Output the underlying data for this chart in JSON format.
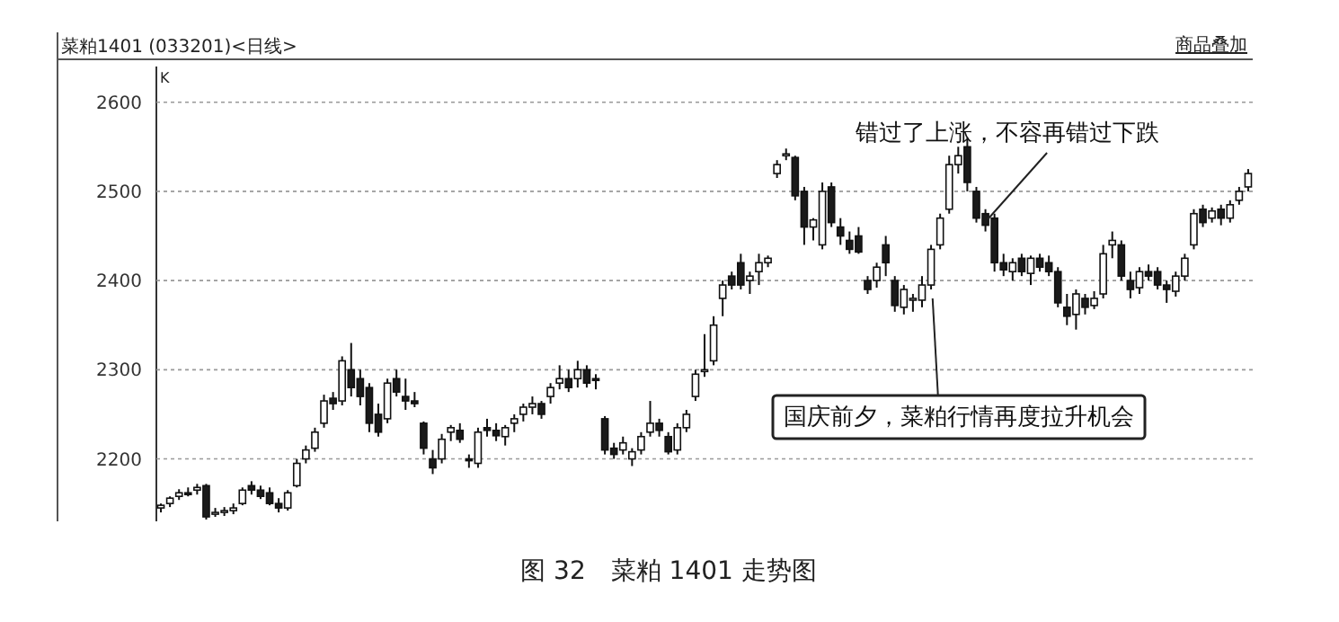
{
  "chart_data": {
    "type": "candlestick",
    "title": "菜粕1401 (033201)<日线>",
    "categories": [
      null,
      null,
      null,
      null,
      null,
      null,
      null,
      null,
      null,
      null,
      null,
      null,
      null,
      null,
      null,
      null,
      null,
      null,
      null,
      null,
      null,
      null,
      null,
      null,
      null,
      null,
      null,
      null,
      null,
      null,
      null,
      null,
      null,
      null,
      null,
      null,
      null,
      null,
      null,
      null,
      null,
      null,
      null,
      null,
      null,
      null,
      null,
      null,
      null,
      null,
      null,
      null,
      null,
      null,
      null,
      null,
      null,
      null,
      null,
      null,
      null,
      null,
      null,
      null,
      null,
      null,
      null,
      null,
      null,
      null,
      null,
      null,
      null,
      null,
      null,
      null,
      null,
      null,
      null,
      null,
      null,
      null,
      null,
      null,
      null,
      null,
      null,
      null,
      null,
      null,
      null,
      null,
      null,
      null,
      null,
      null,
      null,
      null,
      null,
      null,
      null,
      null,
      null,
      null,
      null,
      null,
      null,
      null,
      null,
      null,
      null,
      null,
      null,
      null,
      null,
      null,
      null,
      null,
      null,
      null,
      null
    ],
    "ohlc": [
      [
        2145,
        2150,
        2140,
        2148
      ],
      [
        2150,
        2158,
        2146,
        2156
      ],
      [
        2158,
        2166,
        2154,
        2162
      ],
      [
        2162,
        2168,
        2158,
        2160
      ],
      [
        2165,
        2172,
        2160,
        2168
      ],
      [
        2170,
        2172,
        2132,
        2135
      ],
      [
        2138,
        2145,
        2135,
        2140
      ],
      [
        2140,
        2146,
        2136,
        2142
      ],
      [
        2142,
        2150,
        2138,
        2145
      ],
      [
        2150,
        2168,
        2148,
        2165
      ],
      [
        2170,
        2175,
        2160,
        2165
      ],
      [
        2165,
        2170,
        2155,
        2158
      ],
      [
        2162,
        2168,
        2148,
        2150
      ],
      [
        2150,
        2156,
        2140,
        2145
      ],
      [
        2145,
        2165,
        2142,
        2162
      ],
      [
        2170,
        2200,
        2168,
        2195
      ],
      [
        2200,
        2215,
        2195,
        2210
      ],
      [
        2212,
        2235,
        2208,
        2230
      ],
      [
        2240,
        2272,
        2235,
        2265
      ],
      [
        2268,
        2275,
        2255,
        2262
      ],
      [
        2265,
        2315,
        2260,
        2310
      ],
      [
        2300,
        2330,
        2270,
        2280
      ],
      [
        2290,
        2300,
        2260,
        2270
      ],
      [
        2280,
        2285,
        2230,
        2240
      ],
      [
        2250,
        2262,
        2225,
        2230
      ],
      [
        2245,
        2290,
        2240,
        2285
      ],
      [
        2290,
        2300,
        2270,
        2275
      ],
      [
        2270,
        2290,
        2255,
        2265
      ],
      [
        2265,
        2275,
        2258,
        2262
      ],
      [
        2240,
        2242,
        2205,
        2212
      ],
      [
        2200,
        2210,
        2183,
        2190
      ],
      [
        2200,
        2228,
        2195,
        2222
      ],
      [
        2230,
        2238,
        2220,
        2235
      ],
      [
        2232,
        2240,
        2218,
        2222
      ],
      [
        2200,
        2205,
        2190,
        2198
      ],
      [
        2195,
        2235,
        2190,
        2230
      ],
      [
        2235,
        2245,
        2225,
        2232
      ],
      [
        2232,
        2240,
        2220,
        2226
      ],
      [
        2225,
        2238,
        2215,
        2235
      ],
      [
        2240,
        2250,
        2230,
        2245
      ],
      [
        2250,
        2262,
        2242,
        2258
      ],
      [
        2258,
        2270,
        2250,
        2262
      ],
      [
        2262,
        2265,
        2245,
        2250
      ],
      [
        2270,
        2285,
        2262,
        2280
      ],
      [
        2285,
        2305,
        2278,
        2290
      ],
      [
        2290,
        2300,
        2275,
        2280
      ],
      [
        2290,
        2310,
        2280,
        2300
      ],
      [
        2300,
        2305,
        2280,
        2285
      ],
      [
        2290,
        2295,
        2278,
        2288
      ],
      [
        2245,
        2248,
        2205,
        2210
      ],
      [
        2212,
        2218,
        2200,
        2205
      ],
      [
        2210,
        2225,
        2205,
        2218
      ],
      [
        2200,
        2212,
        2192,
        2208
      ],
      [
        2210,
        2230,
        2205,
        2225
      ],
      [
        2230,
        2265,
        2225,
        2240
      ],
      [
        2240,
        2245,
        2225,
        2232
      ],
      [
        2225,
        2230,
        2205,
        2208
      ],
      [
        2210,
        2240,
        2205,
        2235
      ],
      [
        2235,
        2255,
        2230,
        2250
      ],
      [
        2270,
        2300,
        2265,
        2295
      ],
      [
        2300,
        2340,
        2292,
        2300
      ],
      [
        2310,
        2360,
        2305,
        2350
      ],
      [
        2380,
        2400,
        2360,
        2395
      ],
      [
        2405,
        2410,
        2390,
        2395
      ],
      [
        2420,
        2430,
        2390,
        2395
      ],
      [
        2400,
        2410,
        2385,
        2405
      ],
      [
        2410,
        2430,
        2395,
        2420
      ],
      [
        2420,
        2428,
        2415,
        2425
      ],
      [
        2520,
        2535,
        2515,
        2530
      ],
      [
        2540,
        2548,
        2535,
        2542
      ],
      [
        2538,
        2540,
        2490,
        2495
      ],
      [
        2500,
        2505,
        2440,
        2460
      ],
      [
        2460,
        2470,
        2445,
        2468
      ],
      [
        2440,
        2510,
        2435,
        2500
      ],
      [
        2505,
        2510,
        2460,
        2465
      ],
      [
        2460,
        2470,
        2440,
        2450
      ],
      [
        2445,
        2455,
        2430,
        2435
      ],
      [
        2450,
        2460,
        2430,
        2432
      ],
      [
        2400,
        2405,
        2385,
        2390
      ],
      [
        2400,
        2420,
        2392,
        2415
      ],
      [
        2440,
        2450,
        2405,
        2420
      ],
      [
        2400,
        2405,
        2365,
        2372
      ],
      [
        2370,
        2395,
        2362,
        2390
      ],
      [
        2378,
        2385,
        2365,
        2380
      ],
      [
        2378,
        2405,
        2370,
        2395
      ],
      [
        2395,
        2440,
        2390,
        2435
      ],
      [
        2440,
        2475,
        2435,
        2470
      ],
      [
        2480,
        2540,
        2475,
        2530
      ],
      [
        2530,
        2550,
        2520,
        2540
      ],
      [
        2550,
        2560,
        2500,
        2510
      ],
      [
        2500,
        2505,
        2465,
        2470
      ],
      [
        2475,
        2480,
        2455,
        2462
      ],
      [
        2470,
        2475,
        2410,
        2420
      ],
      [
        2420,
        2430,
        2405,
        2412
      ],
      [
        2410,
        2425,
        2400,
        2420
      ],
      [
        2425,
        2430,
        2405,
        2410
      ],
      [
        2408,
        2428,
        2395,
        2425
      ],
      [
        2425,
        2430,
        2410,
        2415
      ],
      [
        2420,
        2428,
        2405,
        2410
      ],
      [
        2410,
        2415,
        2370,
        2375
      ],
      [
        2370,
        2385,
        2350,
        2360
      ],
      [
        2362,
        2390,
        2345,
        2385
      ],
      [
        2380,
        2385,
        2362,
        2370
      ],
      [
        2372,
        2388,
        2368,
        2380
      ],
      [
        2385,
        2440,
        2380,
        2430
      ],
      [
        2440,
        2455,
        2425,
        2445
      ],
      [
        2440,
        2445,
        2400,
        2405
      ],
      [
        2400,
        2410,
        2380,
        2390
      ],
      [
        2392,
        2415,
        2385,
        2410
      ],
      [
        2410,
        2418,
        2400,
        2405
      ],
      [
        2410,
        2415,
        2390,
        2395
      ],
      [
        2395,
        2400,
        2375,
        2390
      ],
      [
        2388,
        2410,
        2382,
        2405
      ],
      [
        2405,
        2430,
        2400,
        2425
      ],
      [
        2440,
        2480,
        2435,
        2475
      ],
      [
        2480,
        2485,
        2460,
        2465
      ],
      [
        2470,
        2482,
        2465,
        2478
      ],
      [
        2480,
        2485,
        2462,
        2470
      ],
      [
        2470,
        2490,
        2465,
        2485
      ],
      [
        2490,
        2505,
        2485,
        2500
      ],
      [
        2505,
        2525,
        2500,
        2520
      ]
    ],
    "ylim": [
      2130,
      2640
    ],
    "yticks": [
      2200,
      2300,
      2400,
      2500,
      2600
    ],
    "grid": "y",
    "tick_labels": "y",
    "annotations": [
      "错过了上涨，不容再错过下跌",
      "国庆前夕，菜粕行情再度拉升机会",
      "商品叠加",
      "K",
      "图 32　菜粕 1401 走势图"
    ]
  }
}
